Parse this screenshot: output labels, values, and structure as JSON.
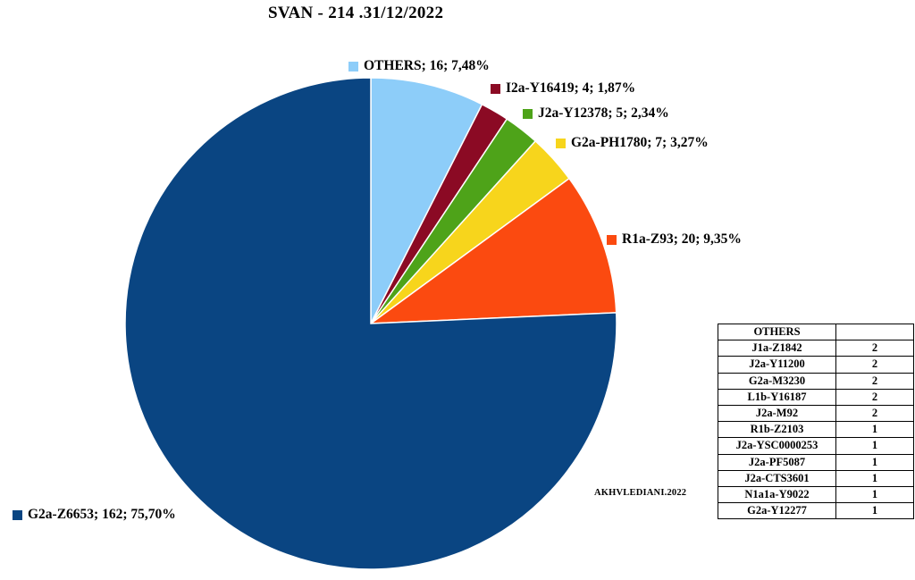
{
  "chart_data": {
    "type": "pie",
    "title": "SVAN - 214 .31/12/2022",
    "slices": [
      {
        "name": "OTHERS",
        "value": 16,
        "percent": 7.48,
        "color": "#8dcdf9",
        "label": "OTHERS; 16; 7,48%"
      },
      {
        "name": "I2a-Y16419",
        "value": 4,
        "percent": 1.87,
        "color": "#8b0a24",
        "label": "I2a-Y16419; 4; 1,87%"
      },
      {
        "name": "J2a-Y12378",
        "value": 5,
        "percent": 2.34,
        "color": "#4ea319",
        "label": "J2a-Y12378; 5; 2,34%"
      },
      {
        "name": "G2a-PH1780",
        "value": 7,
        "percent": 3.27,
        "color": "#f7d51c",
        "label": "G2a-PH1780; 7; 3,27%"
      },
      {
        "name": "R1a-Z93",
        "value": 20,
        "percent": 9.35,
        "color": "#fb4a10",
        "label": "R1a-Z93; 20; 9,35%"
      },
      {
        "name": "G2a-Z6653",
        "value": 162,
        "percent": 75.7,
        "color": "#0a4582",
        "label": "G2a-Z6653; 162; 75,70%"
      }
    ]
  },
  "others_table": {
    "header": "OTHERS",
    "header_value": "",
    "rows": [
      {
        "name": "J1a-Z1842",
        "count": "2"
      },
      {
        "name": "J2a-Y11200",
        "count": "2"
      },
      {
        "name": "G2a-M3230",
        "count": "2"
      },
      {
        "name": "L1b-Y16187",
        "count": "2"
      },
      {
        "name": "J2a-M92",
        "count": "2"
      },
      {
        "name": "R1b-Z2103",
        "count": "1"
      },
      {
        "name": "J2a-YSC0000253",
        "count": "1"
      },
      {
        "name": "J2a-PF5087",
        "count": "1"
      },
      {
        "name": "J2a-CTS3601",
        "count": "1"
      },
      {
        "name": "N1a1a-Y9022",
        "count": "1"
      },
      {
        "name": "G2a-Y12277",
        "count": "1"
      }
    ]
  },
  "watermark": "AKHVLEDIANI.2022"
}
